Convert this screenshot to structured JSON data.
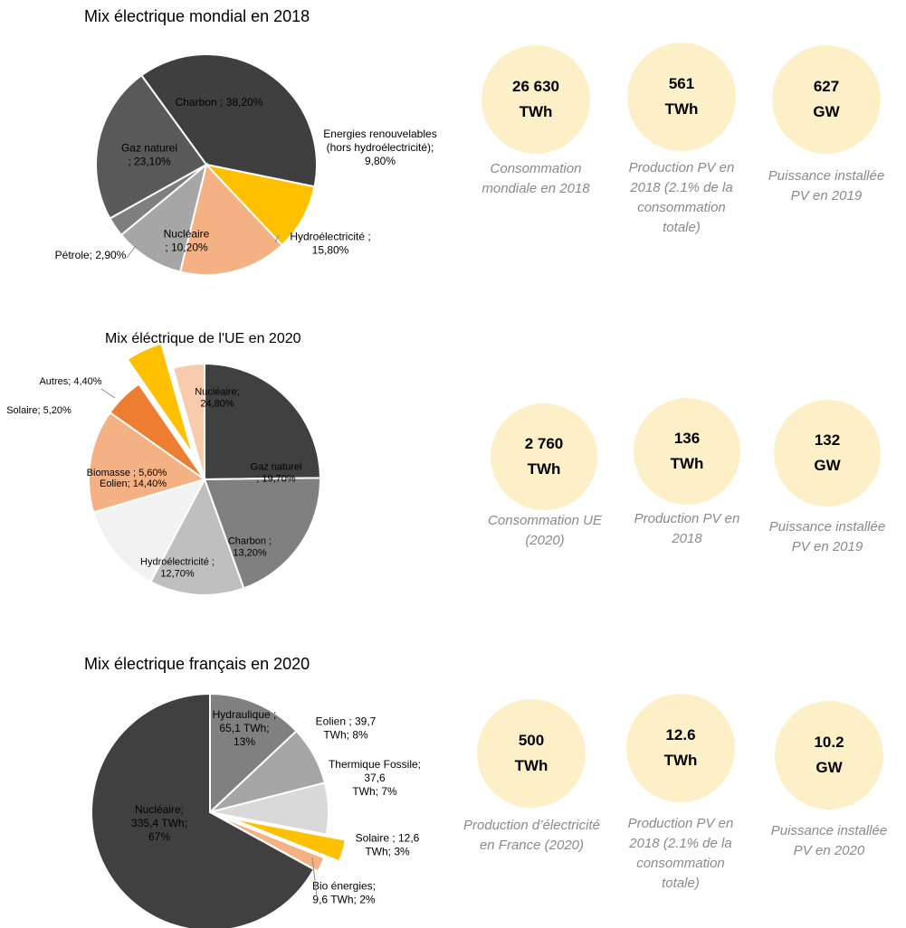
{
  "chart_data": [
    {
      "type": "pie",
      "title": "Mix électrique mondial en 2018",
      "slices": [
        {
          "label": "Charbon ; 38,20%",
          "value": 38.2,
          "color": "#3f3f3f"
        },
        {
          "label": "Energies renouvelables (hors hydroélectricité); 9,80%",
          "value": 9.8,
          "color": "#ffc000"
        },
        {
          "label": "Hydroélectricité ; 15,80%",
          "value": 15.8,
          "color": "#f4b183"
        },
        {
          "label": "Nucléaire ; 10,20%",
          "value": 10.2,
          "color": "#a6a6a6"
        },
        {
          "label": "Pétrole; 2,90%",
          "value": 2.9,
          "color": "#7f7f7f"
        },
        {
          "label": "Gaz naturel ; 23,10%",
          "value": 23.1,
          "color": "#595959"
        }
      ]
    },
    {
      "type": "pie",
      "title": "Mix éléctrique de l'UE en 2020",
      "slices": [
        {
          "label": "Nucléaire; 24,80%",
          "value": 24.8,
          "color": "#404040"
        },
        {
          "label": "Gaz naturel ; 19,70%",
          "value": 19.7,
          "color": "#808080"
        },
        {
          "label": "Charbon ; 13,20%",
          "value": 13.2,
          "color": "#bfbfbf"
        },
        {
          "label": "Hydroélectricité ; 12,70%",
          "value": 12.7,
          "color": "#f2f2f2"
        },
        {
          "label": "Eolien; 14,40%",
          "value": 14.4,
          "color": "#f4b183"
        },
        {
          "label": "Biomasse ; 5,60%",
          "value": 5.6,
          "color": "#ed7d31"
        },
        {
          "label": "Solaire; 5,20%",
          "value": 5.2,
          "color": "#ffc000"
        },
        {
          "label": "Autres; 4,40%",
          "value": 4.4,
          "color": "#f8cbad"
        }
      ]
    },
    {
      "type": "pie",
      "title": "Mix électrique français en 2020",
      "slices": [
        {
          "label": "Hydraulique ; 65,1 TWh; 13%",
          "value": 13,
          "color": "#808080"
        },
        {
          "label": "Eolien ; 39,7 TWh; 8%",
          "value": 8,
          "color": "#a6a6a6"
        },
        {
          "label": "Thermique Fossile; 37,6 TWh; 7%",
          "value": 7,
          "color": "#d9d9d9"
        },
        {
          "label": "Solaire ; 12,6 TWh; 3%",
          "value": 3,
          "color": "#ffc000"
        },
        {
          "label": "Bio énergies; 9,6 TWh; 2%",
          "value": 2,
          "color": "#f4b183"
        },
        {
          "label": "Nucléaire; 335,4 TWh; 67%",
          "value": 67,
          "color": "#404040"
        }
      ]
    }
  ],
  "stats": [
    [
      {
        "value": "26 630",
        "unit": "TWh",
        "caption": [
          "Consommation",
          "mondiale en 2018"
        ]
      },
      {
        "value": "561",
        "unit": "TWh",
        "caption": [
          "Production PV en",
          "2018 (2.1% de la",
          "consommation",
          "totale)"
        ]
      },
      {
        "value": "627",
        "unit": "GW",
        "caption": [
          "Puissance installée",
          "PV en 2019"
        ]
      }
    ],
    [
      {
        "value": "2 760",
        "unit": "TWh",
        "caption": [
          "Consommation UE",
          "(2020)"
        ]
      },
      {
        "value": "136",
        "unit": "TWh",
        "caption": [
          "Production PV en",
          "2018"
        ]
      },
      {
        "value": "132",
        "unit": "GW",
        "caption": [
          "Puissance installée",
          "PV en 2019"
        ]
      }
    ],
    [
      {
        "value": "500",
        "unit": "TWh",
        "caption": [
          "Production d’électricité",
          "en France (2020)"
        ]
      },
      {
        "value": "12.6",
        "unit": "TWh",
        "caption": [
          "Production PV en",
          "2018 (2.1% de la",
          "consommation",
          "totale)"
        ]
      },
      {
        "value": "10.2",
        "unit": "GW",
        "caption": [
          "Puissance installée",
          "PV en 2020"
        ]
      }
    ]
  ]
}
